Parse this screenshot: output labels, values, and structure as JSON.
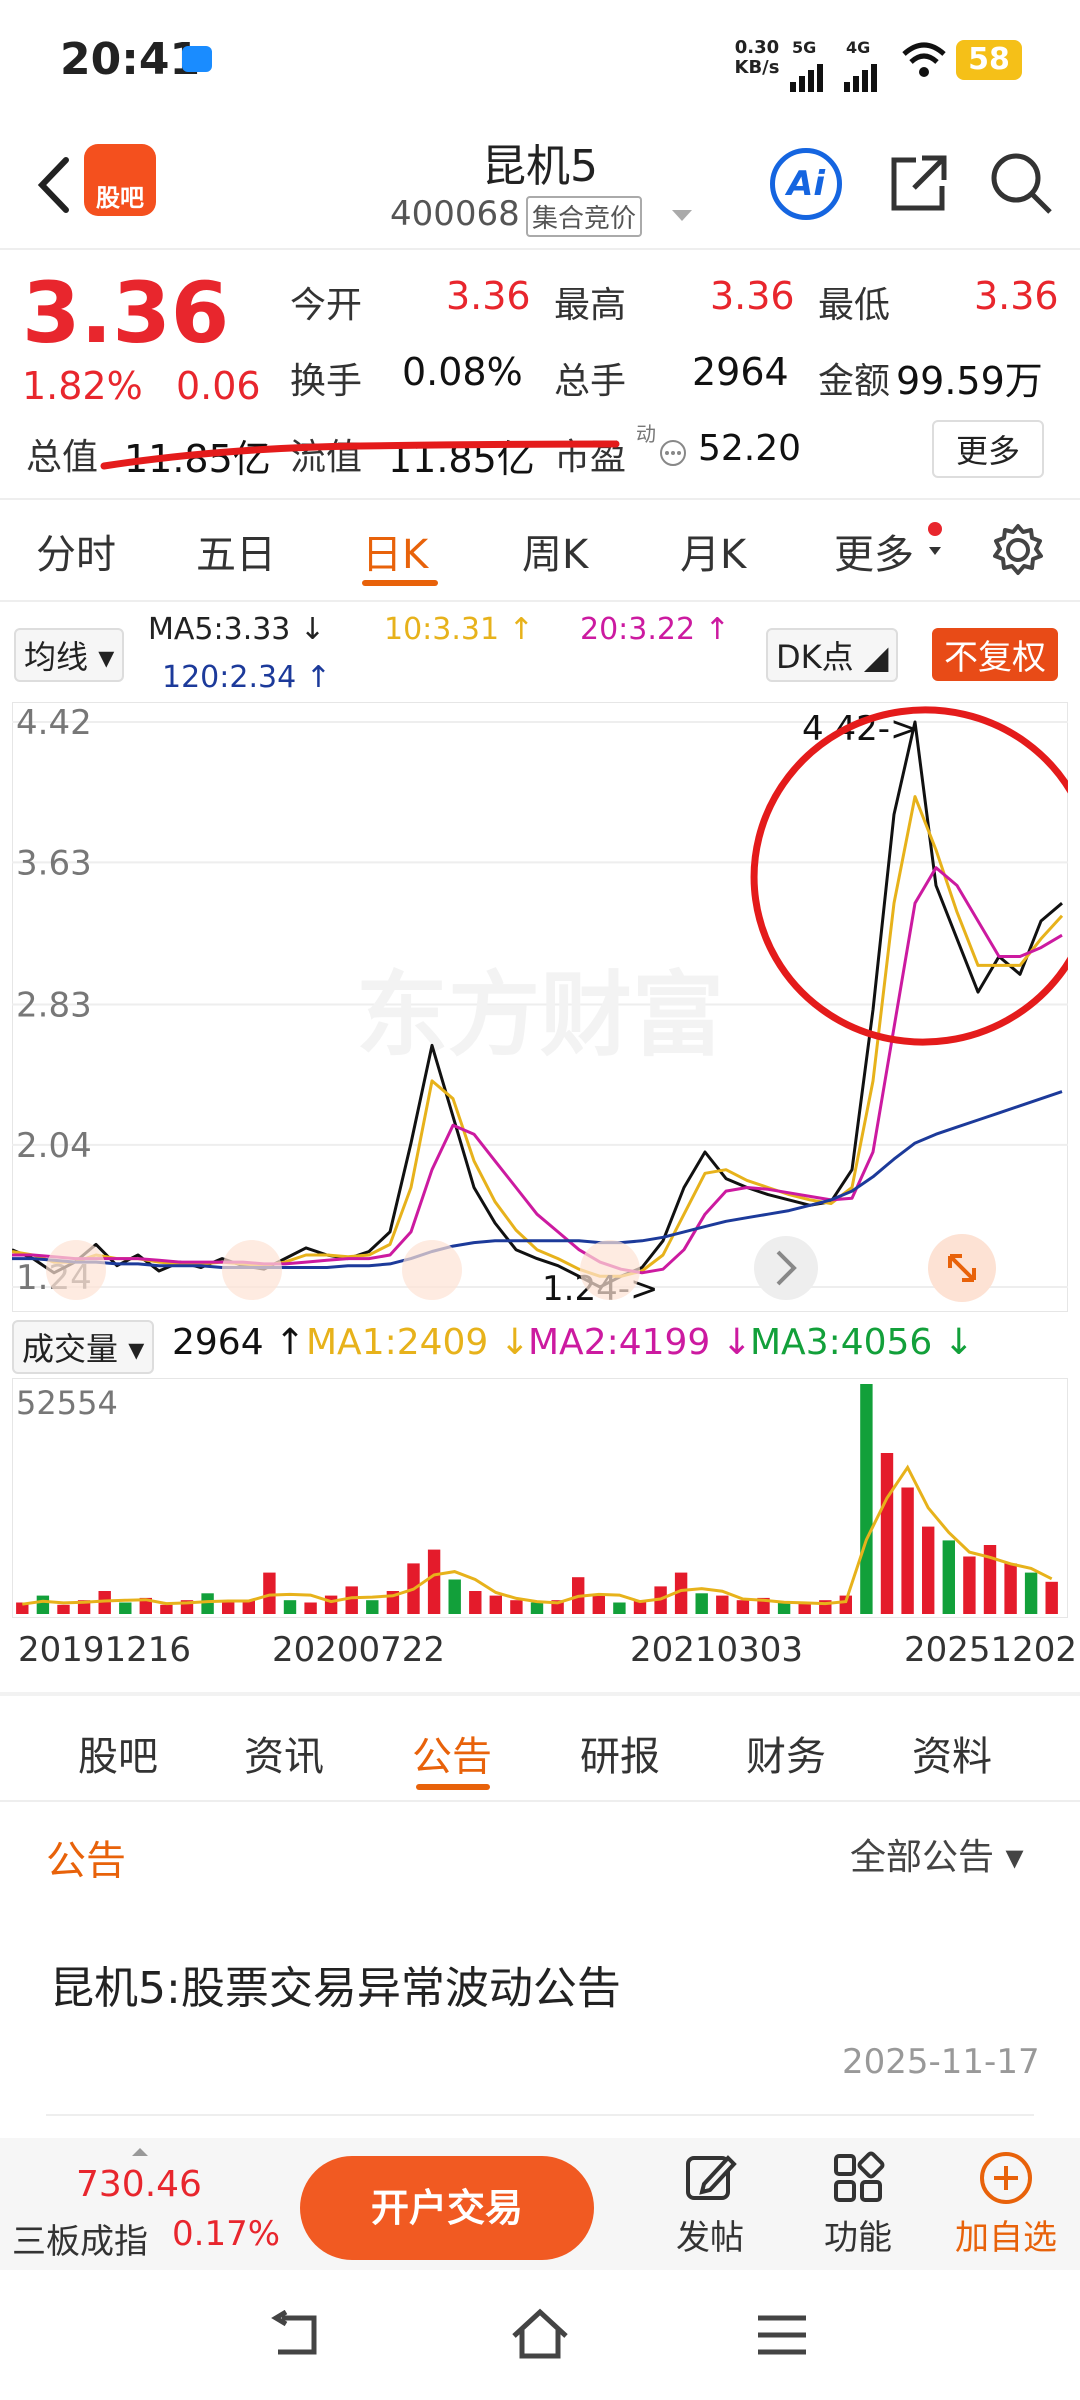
{
  "status": {
    "time": "20:41",
    "net_speed": "0.30",
    "net_unit": "KB/s",
    "sig1": "5G",
    "sig2": "4G",
    "battery": "58"
  },
  "header": {
    "logo": "股吧",
    "title": "昆机5",
    "code": "400068",
    "auction": "集合竞价"
  },
  "quote": {
    "price": "3.36",
    "pct": "1.82%",
    "change": "0.06",
    "open_label": "今开",
    "open": "3.36",
    "high_label": "最高",
    "high": "3.36",
    "low_label": "最低",
    "low": "3.36",
    "turnover_label": "换手",
    "turnover": "0.08%",
    "volume_label": "总手",
    "volume": "2964",
    "amount_label": "金额",
    "amount": "99.59万",
    "cap_label": "总值",
    "cap": "11.85亿",
    "float_label": "流值",
    "float": "11.85亿",
    "pe_label": "市盈",
    "pe_sup": "动",
    "pe": "52.20",
    "more": "更多"
  },
  "periods": [
    "分时",
    "五日",
    "日K",
    "周K",
    "月K",
    "更多"
  ],
  "ma": {
    "selector": "均线",
    "ma5": "MA5:3.33 ↓",
    "ma10": "10:3.31 ↑",
    "ma20": "20:3.22 ↑",
    "ma120": "120:2.34 ↑",
    "dk": "DK点",
    "fq": "不复权"
  },
  "chart_data": {
    "type": "line",
    "y_ticks": [
      "4.42",
      "3.63",
      "2.83",
      "2.04",
      "1.24"
    ],
    "ylim": [
      1.24,
      4.42
    ],
    "high_label": "4.42->",
    "low_label": "1.24->",
    "watermark": "东方财富",
    "series": [
      {
        "name": "K",
        "color": "#111111",
        "values": [
          1.45,
          1.4,
          1.32,
          1.38,
          1.48,
          1.36,
          1.42,
          1.33,
          1.38,
          1.35,
          1.4,
          1.36,
          1.34,
          1.4,
          1.46,
          1.42,
          1.4,
          1.44,
          1.55,
          2.05,
          2.6,
          2.2,
          1.8,
          1.6,
          1.45,
          1.4,
          1.36,
          1.3,
          1.24,
          1.3,
          1.35,
          1.5,
          1.8,
          2.0,
          1.85,
          1.8,
          1.76,
          1.73,
          1.7,
          1.72,
          1.9,
          2.8,
          3.9,
          4.42,
          3.5,
          3.2,
          2.9,
          3.1,
          3.0,
          3.3,
          3.4
        ]
      },
      {
        "name": "MA5",
        "color": "#e7b21b",
        "values": [
          1.44,
          1.42,
          1.38,
          1.38,
          1.42,
          1.4,
          1.4,
          1.38,
          1.37,
          1.37,
          1.38,
          1.37,
          1.36,
          1.38,
          1.42,
          1.42,
          1.41,
          1.42,
          1.48,
          1.8,
          2.4,
          2.3,
          1.95,
          1.72,
          1.56,
          1.45,
          1.4,
          1.34,
          1.3,
          1.3,
          1.33,
          1.42,
          1.65,
          1.88,
          1.9,
          1.84,
          1.8,
          1.76,
          1.73,
          1.71,
          1.8,
          2.4,
          3.4,
          4.0,
          3.7,
          3.35,
          3.05,
          3.05,
          3.05,
          3.2,
          3.33
        ]
      },
      {
        "name": "MA20",
        "color": "#cc1aa0",
        "values": [
          1.42,
          1.42,
          1.41,
          1.4,
          1.4,
          1.4,
          1.4,
          1.39,
          1.38,
          1.38,
          1.38,
          1.38,
          1.37,
          1.37,
          1.38,
          1.39,
          1.4,
          1.4,
          1.42,
          1.55,
          1.9,
          2.15,
          2.1,
          1.95,
          1.8,
          1.65,
          1.55,
          1.45,
          1.38,
          1.34,
          1.32,
          1.34,
          1.45,
          1.65,
          1.78,
          1.8,
          1.79,
          1.77,
          1.75,
          1.73,
          1.74,
          2.0,
          2.7,
          3.4,
          3.6,
          3.5,
          3.3,
          3.1,
          3.1,
          3.15,
          3.22
        ]
      },
      {
        "name": "MA120",
        "color": "#1c3a9a",
        "values": [
          1.4,
          1.4,
          1.39,
          1.38,
          1.38,
          1.37,
          1.37,
          1.36,
          1.36,
          1.36,
          1.35,
          1.35,
          1.35,
          1.35,
          1.35,
          1.35,
          1.36,
          1.36,
          1.37,
          1.4,
          1.44,
          1.47,
          1.49,
          1.5,
          1.5,
          1.5,
          1.5,
          1.5,
          1.49,
          1.49,
          1.5,
          1.52,
          1.55,
          1.58,
          1.61,
          1.63,
          1.65,
          1.67,
          1.7,
          1.73,
          1.78,
          1.86,
          1.96,
          2.05,
          2.1,
          2.14,
          2.18,
          2.22,
          2.26,
          2.3,
          2.34
        ]
      }
    ]
  },
  "volume": {
    "selector": "成交量",
    "current": "2964 ↑",
    "ma1": "MA1:2409 ↓",
    "ma2": "MA2:4199 ↓",
    "ma3": "MA3:4056 ↓",
    "max_label": "52554",
    "values": [
      0.05,
      0.08,
      0.04,
      0.06,
      0.1,
      0.05,
      0.07,
      0.04,
      0.06,
      0.09,
      0.05,
      0.06,
      0.18,
      0.06,
      0.05,
      0.08,
      0.12,
      0.06,
      0.1,
      0.22,
      0.28,
      0.15,
      0.1,
      0.08,
      0.06,
      0.05,
      0.06,
      0.16,
      0.08,
      0.05,
      0.06,
      0.12,
      0.18,
      0.09,
      0.08,
      0.06,
      0.07,
      0.05,
      0.05,
      0.06,
      0.08,
      1.0,
      0.7,
      0.55,
      0.38,
      0.32,
      0.25,
      0.3,
      0.22,
      0.18,
      0.14
    ]
  },
  "dates": [
    "20191216",
    "20200722",
    "20210303",
    "20251202"
  ],
  "subtabs": [
    "股吧",
    "资讯",
    "公告",
    "研报",
    "财务",
    "资料"
  ],
  "announce": {
    "section": "公告",
    "filter": "全部公告",
    "title": "昆机5:股票交易异常波动公告",
    "date": "2025-11-17"
  },
  "actionbar": {
    "index_value": "730.46",
    "index_name": "三板成指",
    "index_pct": "0.17%",
    "trade": "开户交易",
    "post": "发帖",
    "func": "功能",
    "add": "加自选"
  }
}
